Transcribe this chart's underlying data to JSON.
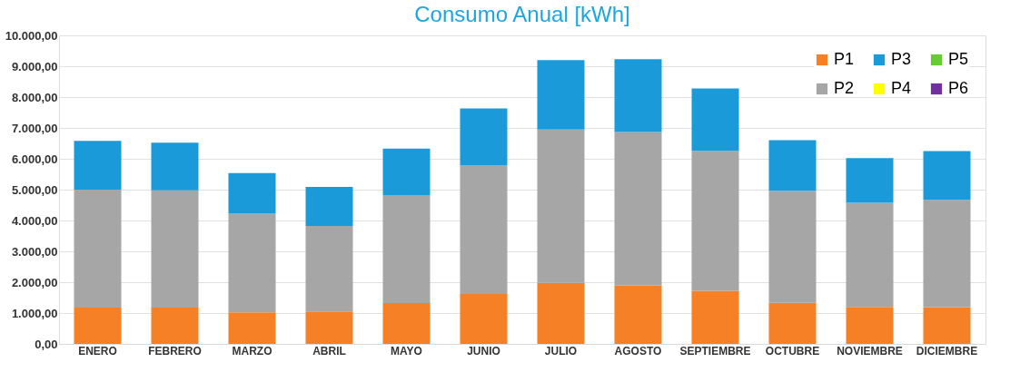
{
  "chart_data": {
    "type": "bar",
    "title": "Consumo Anual [kWh]",
    "stacked": true,
    "grid": "y",
    "legend": "top right",
    "categories": [
      "ENERO",
      "FEBRERO",
      "MARZO",
      "ABRIL",
      "MAYO",
      "JUNIO",
      "JULIO",
      "AGOSTO",
      "SEPTIEMBRE",
      "OCTUBRE",
      "NOVIEMBRE",
      "DICIEMBRE"
    ],
    "series": [
      {
        "name": "P1",
        "color": "#f58025",
        "values": [
          1180,
          1180,
          1020,
          1050,
          1320,
          1620,
          1980,
          1900,
          1720,
          1330,
          1200,
          1190
        ]
      },
      {
        "name": "P2",
        "color": "#a6a6a6",
        "values": [
          3820,
          3800,
          3200,
          2770,
          3500,
          4160,
          4970,
          4970,
          4540,
          3630,
          3370,
          3480
        ]
      },
      {
        "name": "P3",
        "color": "#1a9ad9",
        "values": [
          1580,
          1540,
          1320,
          1270,
          1510,
          1850,
          2250,
          2360,
          2020,
          1640,
          1450,
          1580
        ]
      },
      {
        "name": "P4",
        "color": "#ffff00",
        "values": [
          null,
          null,
          null,
          null,
          null,
          null,
          null,
          null,
          null,
          null,
          null,
          null
        ]
      },
      {
        "name": "P5",
        "color": "#66cc33",
        "values": [
          null,
          null,
          null,
          null,
          null,
          null,
          null,
          null,
          null,
          null,
          null,
          null
        ]
      },
      {
        "name": "P6",
        "color": "#7030a0",
        "values": [
          null,
          null,
          null,
          null,
          null,
          null,
          null,
          null,
          null,
          null,
          null,
          null
        ]
      }
    ],
    "ylim": [
      0,
      10000
    ],
    "yticks": [
      {
        "value": 0,
        "label": "0,00"
      },
      {
        "value": 1000,
        "label": "1.000,00"
      },
      {
        "value": 2000,
        "label": "2.000,00"
      },
      {
        "value": 3000,
        "label": "3.000,00"
      },
      {
        "value": 4000,
        "label": "4.000,00"
      },
      {
        "value": 5000,
        "label": "5.000,00"
      },
      {
        "value": 6000,
        "label": "6.000,00"
      },
      {
        "value": 7000,
        "label": "7.000,00"
      },
      {
        "value": 8000,
        "label": "8.000,00"
      },
      {
        "value": 9000,
        "label": "9.000,00"
      },
      {
        "value": 10000,
        "label": "10.000,00"
      }
    ]
  }
}
